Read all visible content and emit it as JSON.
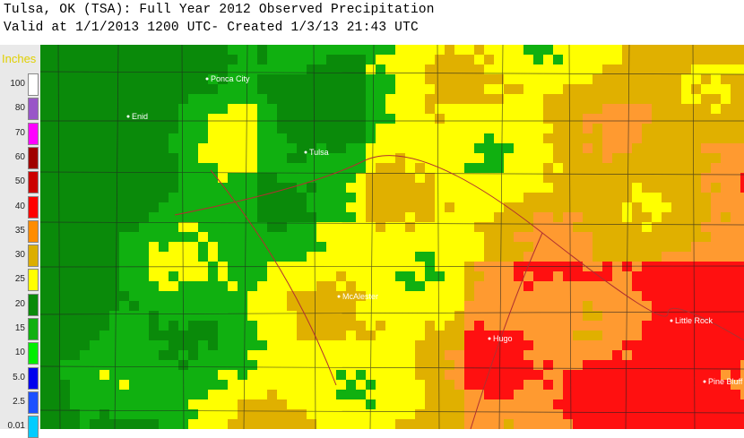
{
  "header": {
    "title": "Tulsa, OK (TSA): Full Year 2012 Observed Precipitation",
    "subtitle": "Valid at 1/1/2013 1200 UTC- Created 1/3/13 21:43 UTC"
  },
  "legend": {
    "unit": "Inches",
    "entries": [
      {
        "label": "100",
        "color": "#ffffff"
      },
      {
        "label": "80",
        "color": "#9955c8"
      },
      {
        "label": "70",
        "color": "#ff00ff"
      },
      {
        "label": "60",
        "color": "#a00000"
      },
      {
        "label": "50",
        "color": "#cc0000"
      },
      {
        "label": "40",
        "color": "#ff0000"
      },
      {
        "label": "35",
        "color": "#ff8c00"
      },
      {
        "label": "30",
        "color": "#dcae00"
      },
      {
        "label": "25",
        "color": "#ffff00"
      },
      {
        "label": "20",
        "color": "#0a8a0a"
      },
      {
        "label": "15",
        "color": "#10b010"
      },
      {
        "label": "10",
        "color": "#00ee00"
      },
      {
        "label": "5.0",
        "color": "#0000ee"
      },
      {
        "label": "2.5",
        "color": "#1e50ff"
      },
      {
        "label": "0.01",
        "color": "#00ccff"
      }
    ]
  },
  "cities": [
    {
      "label": "Ponca City"
    },
    {
      "label": "Enid"
    },
    {
      "label": "Tulsa"
    },
    {
      "label": "McAlester"
    },
    {
      "label": "Hugo"
    },
    {
      "label": "Little Rock"
    },
    {
      "label": "Pine Bluff"
    }
  ]
}
